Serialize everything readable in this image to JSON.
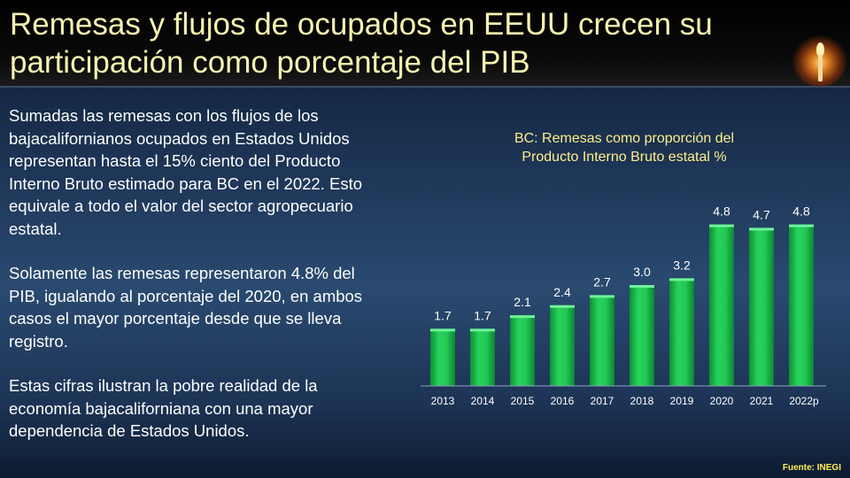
{
  "slide": {
    "title": "Remesas y flujos de ocupados en EEUU crecen su participación  como porcentaje del PIB",
    "paragraphs": [
      "Sumadas las remesas con los flujos de los bajacalifornianos ocupados en Estados Unidos representan hasta el 15% ciento del Producto Interno Bruto estimado para BC en el 2022. Esto equivale a todo el valor del sector agropecuario estatal.",
      "Solamente las remesas representaron 4.8% del PIB, igualando al porcentaje del 2020, en ambos casos el mayor porcentaje desde que se lleva registro.",
      "Estas cifras ilustran la pobre realidad de la economía bajacaliforniana con una mayor dependencia de Estados Unidos."
    ],
    "source": "Fuente:  INEGI",
    "logo_icon": "candle-icon"
  },
  "chart_data": {
    "type": "bar",
    "title_lines": [
      "BC: Remesas como proporción del",
      "Producto Interno Bruto  estatal %"
    ],
    "categories": [
      "2013",
      "2014",
      "2015",
      "2016",
      "2017",
      "2018",
      "2019",
      "2020",
      "2021",
      "2022p"
    ],
    "values": [
      1.7,
      1.7,
      2.1,
      2.4,
      2.7,
      3.0,
      3.2,
      4.8,
      4.7,
      4.8
    ],
    "value_labels": [
      "1.7",
      "1.7",
      "2.1",
      "2.4",
      "2.7",
      "3.0",
      "3.2",
      "4.8",
      "4.7",
      "4.8"
    ],
    "ylim": [
      0,
      5.0
    ],
    "grid": false,
    "bar_color": "#1fc651",
    "label_color": "#ffffff"
  }
}
